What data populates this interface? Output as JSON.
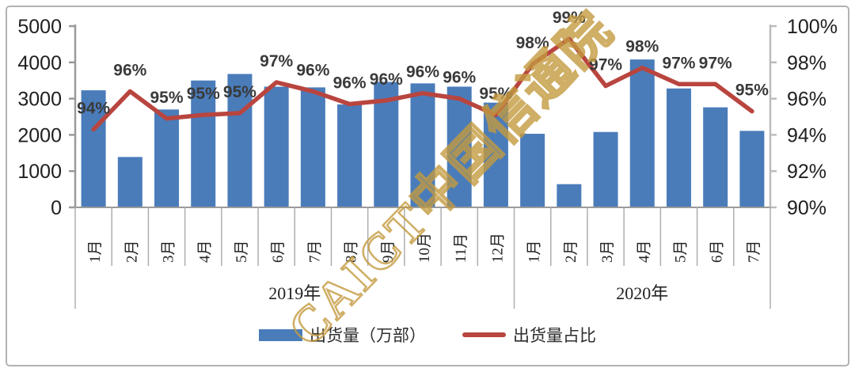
{
  "chart_data": {
    "type": "combo",
    "categories": [
      "1月",
      "2月",
      "3月",
      "4月",
      "5月",
      "6月",
      "7月",
      "8月",
      "9月",
      "10月",
      "11月",
      "12月",
      "1月",
      "2月",
      "3月",
      "4月",
      "5月",
      "6月",
      "7月"
    ],
    "groups": [
      {
        "label": "2019年",
        "span": 12
      },
      {
        "label": "2020年",
        "span": 7
      }
    ],
    "series": [
      {
        "name": "出货量（万部）",
        "type": "bar",
        "color": "#4a7cba",
        "values": [
          3230,
          1390,
          2700,
          3500,
          3680,
          3330,
          3310,
          2840,
          3460,
          3420,
          3330,
          2890,
          2030,
          640,
          2080,
          4080,
          3280,
          2760,
          2110
        ]
      },
      {
        "name": "出货量占比",
        "type": "line",
        "color": "#b9453f",
        "values": [
          94.3,
          96.4,
          94.9,
          95.1,
          95.2,
          96.9,
          96.4,
          95.7,
          95.9,
          96.3,
          96.0,
          95.1,
          97.9,
          99.3,
          96.7,
          97.7,
          96.8,
          96.8,
          95.3
        ],
        "labels": [
          "94%",
          "96%",
          "95%",
          "95%",
          "95%",
          "97%",
          "96%",
          "96%",
          "96%",
          "96%",
          "96%",
          "95%",
          "98%",
          "99%",
          "97%",
          "98%",
          "97%",
          "97%",
          "95%"
        ]
      }
    ],
    "left_axis": {
      "min": 0,
      "max": 5000,
      "ticks": [
        "5000",
        "4000",
        "3000",
        "2000",
        "1000",
        "0"
      ]
    },
    "right_axis": {
      "min": 90,
      "max": 100,
      "ticks": [
        "100%",
        "98%",
        "96%",
        "94%",
        "92%",
        "90%"
      ]
    },
    "grid": false,
    "legend_position": "bottom"
  },
  "legend": {
    "bar_label": "出货量（万部）",
    "line_label": "出货量占比"
  },
  "watermark": {
    "text": "CAICT中国信通院"
  },
  "colors": {
    "bar": "#4a7cba",
    "line": "#b9453f",
    "data_label": "#3a3a3a",
    "axis_line": "#9a9a9a",
    "separator": "#aeaeae",
    "tick_text": "#1f1f1f",
    "watermark_gold": "#c49a3f"
  }
}
